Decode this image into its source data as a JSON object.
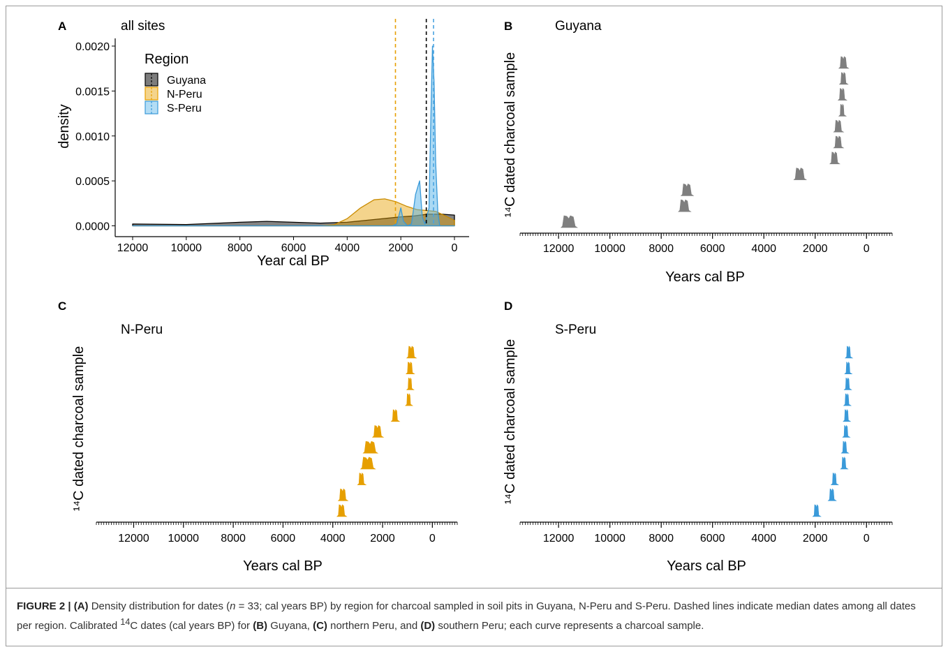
{
  "colors": {
    "guyana": "#7f7f7f",
    "nperu": "#e69f00",
    "speru": "#3a9ad9"
  },
  "chart_data": [
    {
      "panel": "A",
      "type": "area",
      "title": "all sites",
      "xlabel": "Year cal BP",
      "ylabel": "density",
      "xlim": [
        12000,
        0
      ],
      "ylim": [
        0,
        0.002
      ],
      "x_ticks": [
        "12000",
        "10000",
        "8000",
        "6000",
        "4000",
        "2000",
        "0"
      ],
      "y_ticks": [
        "0.0000",
        "0.0005",
        "0.0010",
        "0.0015",
        "0.0020"
      ],
      "legend": {
        "title": "Region",
        "position": "top-left",
        "entries": [
          "Guyana",
          "N-Peru",
          "S-Peru"
        ]
      },
      "series": [
        {
          "name": "Guyana",
          "color": "#7f7f7f",
          "median": 1050,
          "x": [
            12000,
            10000,
            8000,
            7000,
            6000,
            5000,
            4000,
            3000,
            2000,
            1500,
            1000,
            500,
            0
          ],
          "y": [
            2e-05,
            1.5e-05,
            4e-05,
            5e-05,
            4e-05,
            3e-05,
            4e-05,
            7e-05,
            0.0001,
            0.00011,
            0.00013,
            0.00013,
            0.00012
          ]
        },
        {
          "name": "N-Peru",
          "color": "#e69f00",
          "median": 2200,
          "x": [
            12000,
            5000,
            4500,
            4000,
            3500,
            3000,
            2600,
            2200,
            1800,
            1400,
            1000,
            700,
            400,
            0
          ],
          "y": [
            0,
            0,
            1e-05,
            8e-05,
            0.0002,
            0.00029,
            0.0003,
            0.00027,
            0.00022,
            0.00018,
            0.00017,
            0.00016,
            0.00012,
            6e-05
          ]
        },
        {
          "name": "S-Peru",
          "color": "#4aa3e0",
          "median": 780,
          "x": [
            12000,
            2300,
            2150,
            2000,
            1900,
            1750,
            1600,
            1450,
            1300,
            1200,
            1100,
            950,
            880,
            820,
            760,
            700,
            620,
            550,
            0
          ],
          "y": [
            0,
            0,
            2e-05,
            0.0002,
            5e-05,
            0.0,
            2e-05,
            0.00035,
            0.0005,
            0.0001,
            2e-05,
            0.0002,
            0.0012,
            0.002,
            0.0016,
            0.0007,
            0.00015,
            0.0,
            0
          ]
        }
      ]
    },
    {
      "panel": "B",
      "type": "area",
      "title": "Guyana",
      "xlabel": "Years cal BP",
      "ylabel": "¹⁴C dated charcoal sample",
      "xlim": [
        13500,
        -1000
      ],
      "x_ticks": [
        "12000",
        "10000",
        "8000",
        "6000",
        "4000",
        "2000",
        "0"
      ],
      "color": "#7f7f7f",
      "samples": [
        {
          "center": 900,
          "width": 250
        },
        {
          "center": 900,
          "width": 200
        },
        {
          "center": 950,
          "width": 200
        },
        {
          "center": 950,
          "width": 150
        },
        {
          "center": 1100,
          "width": 250
        },
        {
          "center": 1100,
          "width": 250
        },
        {
          "center": 1250,
          "width": 250
        },
        {
          "center": 2600,
          "width": 350
        },
        {
          "center": 7000,
          "width": 350
        },
        {
          "center": 7100,
          "width": 350
        },
        {
          "center": 11600,
          "width": 500
        }
      ]
    },
    {
      "panel": "C",
      "type": "area",
      "title": "N-Peru",
      "xlabel": "Years cal BP",
      "ylabel": "¹⁴C dated charcoal sample",
      "xlim": [
        13500,
        -1000
      ],
      "x_ticks": [
        "12000",
        "10000",
        "8000",
        "6000",
        "4000",
        "2000",
        "0"
      ],
      "color": "#e69f00",
      "samples": [
        {
          "center": 850,
          "width": 250
        },
        {
          "center": 900,
          "width": 200
        },
        {
          "center": 900,
          "width": 150
        },
        {
          "center": 950,
          "width": 150
        },
        {
          "center": 1500,
          "width": 200
        },
        {
          "center": 2200,
          "width": 300
        },
        {
          "center": 2500,
          "width": 450
        },
        {
          "center": 2600,
          "width": 450
        },
        {
          "center": 2850,
          "width": 200
        },
        {
          "center": 3600,
          "width": 250
        },
        {
          "center": 3650,
          "width": 250
        }
      ]
    },
    {
      "panel": "D",
      "type": "area",
      "title": "S-Peru",
      "xlabel": "Years cal BP",
      "ylabel": "¹⁴C dated charcoal sample",
      "xlim": [
        13500,
        -1000
      ],
      "x_ticks": [
        "12000",
        "10000",
        "8000",
        "6000",
        "4000",
        "2000",
        "0"
      ],
      "color": "#3a9ad9",
      "samples": [
        {
          "center": 700,
          "width": 150
        },
        {
          "center": 720,
          "width": 150
        },
        {
          "center": 740,
          "width": 150
        },
        {
          "center": 760,
          "width": 150
        },
        {
          "center": 780,
          "width": 150
        },
        {
          "center": 800,
          "width": 150
        },
        {
          "center": 850,
          "width": 150
        },
        {
          "center": 880,
          "width": 150
        },
        {
          "center": 1250,
          "width": 150
        },
        {
          "center": 1350,
          "width": 180
        },
        {
          "center": 1950,
          "width": 180
        }
      ]
    }
  ],
  "caption": {
    "figure_label": "FIGURE 2 | ",
    "a_label": "(A)",
    "text1": " Density distribution for dates (",
    "n_var": "n",
    "text2": " = 33; cal years BP) by region for charcoal sampled in soil pits in Guyana, N-Peru and S-Peru. Dashed lines indicate median dates among all dates per region. Calibrated ",
    "sup": "14",
    "text3": "C dates (cal years BP) for ",
    "b_label": "(B)",
    "text4": " Guyana, ",
    "c_label": "(C)",
    "text5": " northern Peru, and ",
    "d_label": "(D)",
    "text6": " southern Peru; each curve represents a charcoal sample."
  }
}
